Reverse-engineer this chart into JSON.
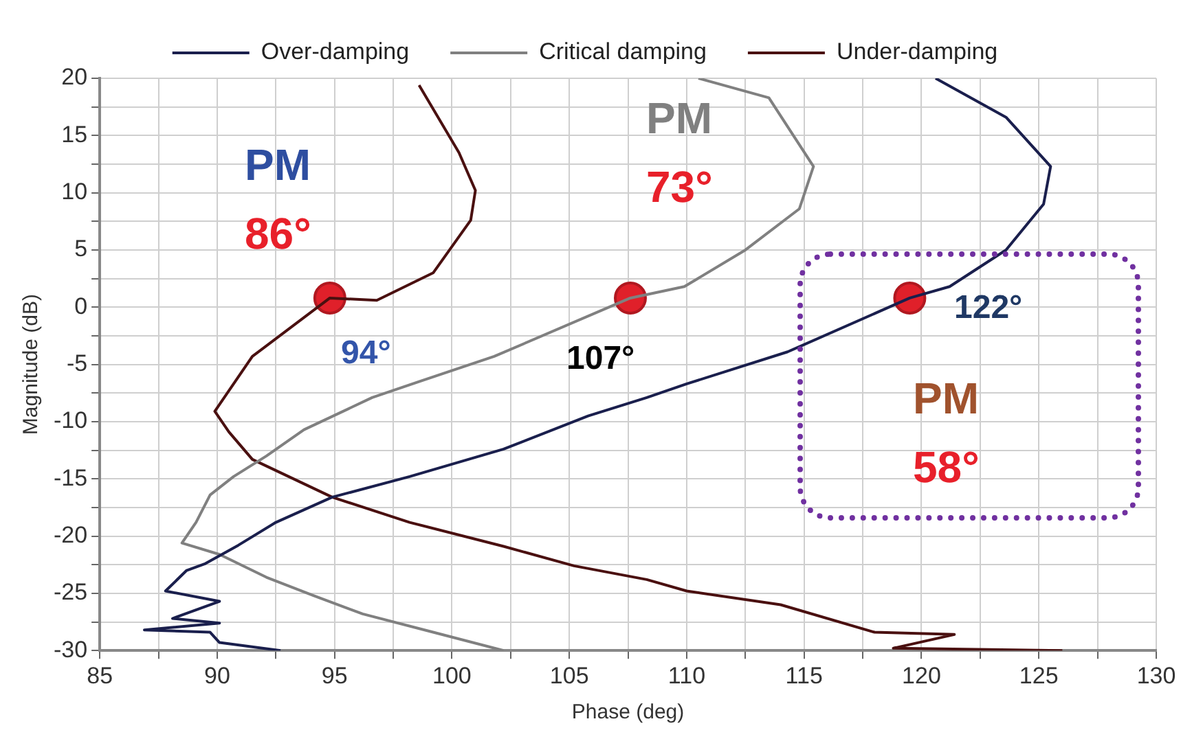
{
  "chart_data": {
    "type": "line",
    "xlabel": "Phase (deg)",
    "ylabel": "Magnitude (dB)",
    "xlim": [
      85,
      130
    ],
    "ylim": [
      -30,
      20
    ],
    "xticks": [
      85,
      {
        "value": 87.5,
        "label": null
      },
      90,
      {
        "value": 92.5,
        "label": null
      },
      95,
      {
        "value": 97.5,
        "label": null
      },
      100,
      {
        "value": 102.5,
        "label": null
      },
      105,
      {
        "value": 107.5,
        "label": null
      },
      110,
      {
        "value": 112.5,
        "label": null
      },
      115,
      {
        "value": 117.5,
        "label": null
      },
      120,
      {
        "value": 122.5,
        "label": null
      },
      125,
      {
        "value": 127.5,
        "label": null
      },
      130
    ],
    "yticks": [
      -30,
      {
        "value": -27.5,
        "label": null
      },
      -25,
      {
        "value": -22.5,
        "label": null
      },
      -20,
      {
        "value": -17.5,
        "label": null
      },
      -15,
      {
        "value": -12.5,
        "label": null
      },
      -10,
      {
        "value": -7.5,
        "label": null
      },
      -5,
      {
        "value": -2.5,
        "label": null
      },
      0,
      {
        "value": 2.5,
        "label": null
      },
      5,
      {
        "value": 7.5,
        "label": null
      },
      10,
      {
        "value": 12.5,
        "label": null
      },
      15,
      {
        "value": 17.5,
        "label": null
      },
      20
    ],
    "grid": true,
    "legend": "top",
    "marker": "none",
    "line_style": "solid",
    "series": [
      {
        "name": "Over-damping",
        "color": "#1a1f4d",
        "x": [
          120.6,
          123.6,
          125.5,
          125.2,
          123.6,
          121.2,
          119.5,
          114.3,
          110.0,
          108.3,
          105.8,
          102.2,
          98.2,
          94.9,
          92.5,
          90.9,
          89.5,
          88.7,
          87.8,
          90.1,
          88.1,
          90.1,
          86.9,
          89.7,
          90.1,
          92.7
        ],
        "values": [
          20,
          16.6,
          12.3,
          9.0,
          5.0,
          1.8,
          0.8,
          -3.9,
          -6.7,
          -7.9,
          -9.5,
          -12.4,
          -14.8,
          -16.6,
          -18.8,
          -20.8,
          -22.4,
          -23.0,
          -24.8,
          -25.7,
          -27.2,
          -27.6,
          -28.2,
          -28.4,
          -29.3,
          -30
        ]
      },
      {
        "name": "Critical damping",
        "color": "#808080",
        "x": [
          110.5,
          113.5,
          115.4,
          114.8,
          112.5,
          109.9,
          107.6,
          101.8,
          98.6,
          96.6,
          93.7,
          92.1,
          90.7,
          89.7,
          89.1,
          88.5,
          90.1,
          92.1,
          94.1,
          96.2,
          99.2,
          102.2
        ],
        "values": [
          20,
          18.3,
          12.3,
          8.6,
          5.0,
          1.8,
          0.8,
          -4.3,
          -6.5,
          -7.9,
          -10.7,
          -13.0,
          -14.8,
          -16.4,
          -18.8,
          -20.6,
          -21.6,
          -23.6,
          -25.2,
          -26.8,
          -28.4,
          -30
        ]
      },
      {
        "name": "Under-damping",
        "color": "#4a1010",
        "x": [
          98.6,
          100.3,
          101.0,
          100.8,
          99.2,
          96.8,
          94.8,
          91.5,
          90.7,
          89.9,
          90.5,
          91.5,
          94.9,
          98.2,
          102.2,
          105.2,
          108.3,
          110.0,
          114.0,
          118.0,
          121.4,
          118.8,
          126.0
        ],
        "values": [
          19.4,
          13.5,
          10.2,
          7.6,
          3.0,
          0.6,
          0.8,
          -4.3,
          -6.7,
          -9.1,
          -10.9,
          -13.3,
          -16.6,
          -18.8,
          -20.9,
          -22.6,
          -23.8,
          -24.8,
          -26.0,
          -28.4,
          -28.6,
          -29.8,
          -30
        ]
      },
      {
        "type": "scatter",
        "marker": "circle",
        "color": "#e0202a",
        "x": [
          94.8,
          107.6,
          119.5
        ],
        "values": [
          0.8,
          0.8,
          0.8
        ]
      }
    ],
    "annotations": [
      "PM",
      "86°",
      "PM",
      "73°",
      "94°",
      "107°",
      "122°",
      "PM",
      "58°"
    ]
  }
}
